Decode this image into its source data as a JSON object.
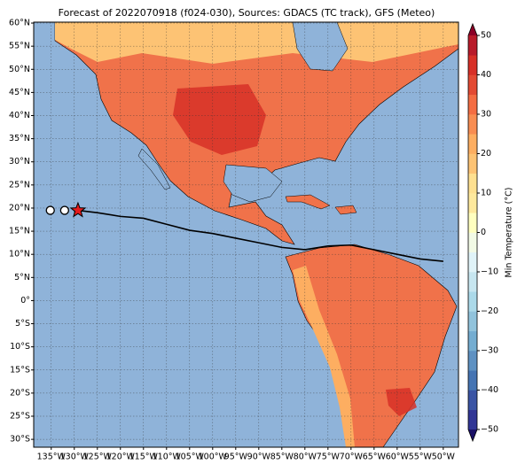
{
  "chart_data": {
    "type": "map",
    "title": "Forecast of 2022070918 (f024-030), Sources: GDACS (TC track), GFS (Meteo)",
    "xlim": [
      -138.8,
      -46.7
    ],
    "ylim": [
      -31.7,
      60.2
    ],
    "xticks": [
      {
        "value": -135,
        "label": "135°W"
      },
      {
        "value": -130,
        "label": "130°W"
      },
      {
        "value": -125,
        "label": "125°W"
      },
      {
        "value": -120,
        "label": "120°W"
      },
      {
        "value": -115,
        "label": "115°W"
      },
      {
        "value": -110,
        "label": "110°W"
      },
      {
        "value": -105,
        "label": "105°W"
      },
      {
        "value": -100,
        "label": "100°W"
      },
      {
        "value": -95,
        "label": "95°W"
      },
      {
        "value": -90,
        "label": "90°W"
      },
      {
        "value": -85,
        "label": "85°W"
      },
      {
        "value": -80,
        "label": "80°W"
      },
      {
        "value": -75,
        "label": "75°W"
      },
      {
        "value": -70,
        "label": "70°W"
      },
      {
        "value": -65,
        "label": "65°W"
      },
      {
        "value": -60,
        "label": "60°W"
      },
      {
        "value": -55,
        "label": "55°W"
      },
      {
        "value": -50,
        "label": "50°W"
      }
    ],
    "yticks": [
      {
        "value": 60,
        "label": "60°N"
      },
      {
        "value": 55,
        "label": "55°N"
      },
      {
        "value": 50,
        "label": "50°N"
      },
      {
        "value": 45,
        "label": "45°N"
      },
      {
        "value": 40,
        "label": "40°N"
      },
      {
        "value": 35,
        "label": "35°N"
      },
      {
        "value": 30,
        "label": "30°N"
      },
      {
        "value": 25,
        "label": "25°N"
      },
      {
        "value": 20,
        "label": "20°N"
      },
      {
        "value": 15,
        "label": "15°N"
      },
      {
        "value": 10,
        "label": "10°N"
      },
      {
        "value": 5,
        "label": "5°N"
      },
      {
        "value": 0,
        "label": "0°"
      },
      {
        "value": -5,
        "label": "5°S"
      },
      {
        "value": -10,
        "label": "10°S"
      },
      {
        "value": -15,
        "label": "15°S"
      },
      {
        "value": -20,
        "label": "20°S"
      },
      {
        "value": -25,
        "label": "25°S"
      },
      {
        "value": -30,
        "label": "30°S"
      }
    ],
    "grid": true,
    "track": {
      "lon": [
        -129.2,
        -125,
        -120,
        -115,
        -110,
        -105,
        -100,
        -95,
        -90,
        -85,
        -80,
        -75,
        -70,
        -65,
        -60,
        -55,
        -50
      ],
      "lat": [
        19.5,
        19,
        18.2,
        17.8,
        16.5,
        15.2,
        14.5,
        13.5,
        12.5,
        11.5,
        11,
        11.8,
        12,
        11,
        10,
        9,
        8.5
      ],
      "color": "#000000"
    },
    "past_positions": {
      "lon": [
        -135.2,
        -132.1
      ],
      "lat": [
        19.5,
        19.5
      ]
    },
    "current_position": {
      "lon": -129.2,
      "lat": 19.5,
      "color": "#e41a1c"
    },
    "colorbar": {
      "label": "Min Temperature (°C)",
      "lim": [
        -50,
        50
      ],
      "ticks": [
        {
          "value": -50,
          "label": "−50"
        },
        {
          "value": -40,
          "label": "−40"
        },
        {
          "value": -30,
          "label": "−30"
        },
        {
          "value": -20,
          "label": "−20"
        },
        {
          "value": -10,
          "label": "−10"
        },
        0,
        10,
        20,
        30,
        40,
        50
      ],
      "colors": [
        "#313695",
        "#3a54a4",
        "#4574b3",
        "#5e91c2",
        "#74add1",
        "#91c3dc",
        "#abd9e9",
        "#c7e6f0",
        "#e0f3f8",
        "#f2fae5",
        "#ffffbf",
        "#fee99d",
        "#fee090",
        "#fdc374",
        "#fdae61",
        "#f88d52",
        "#f46d43",
        "#e34a33",
        "#d73027",
        "#b81b2a"
      ],
      "under": "#1a1066",
      "over": "#8b0026"
    }
  }
}
